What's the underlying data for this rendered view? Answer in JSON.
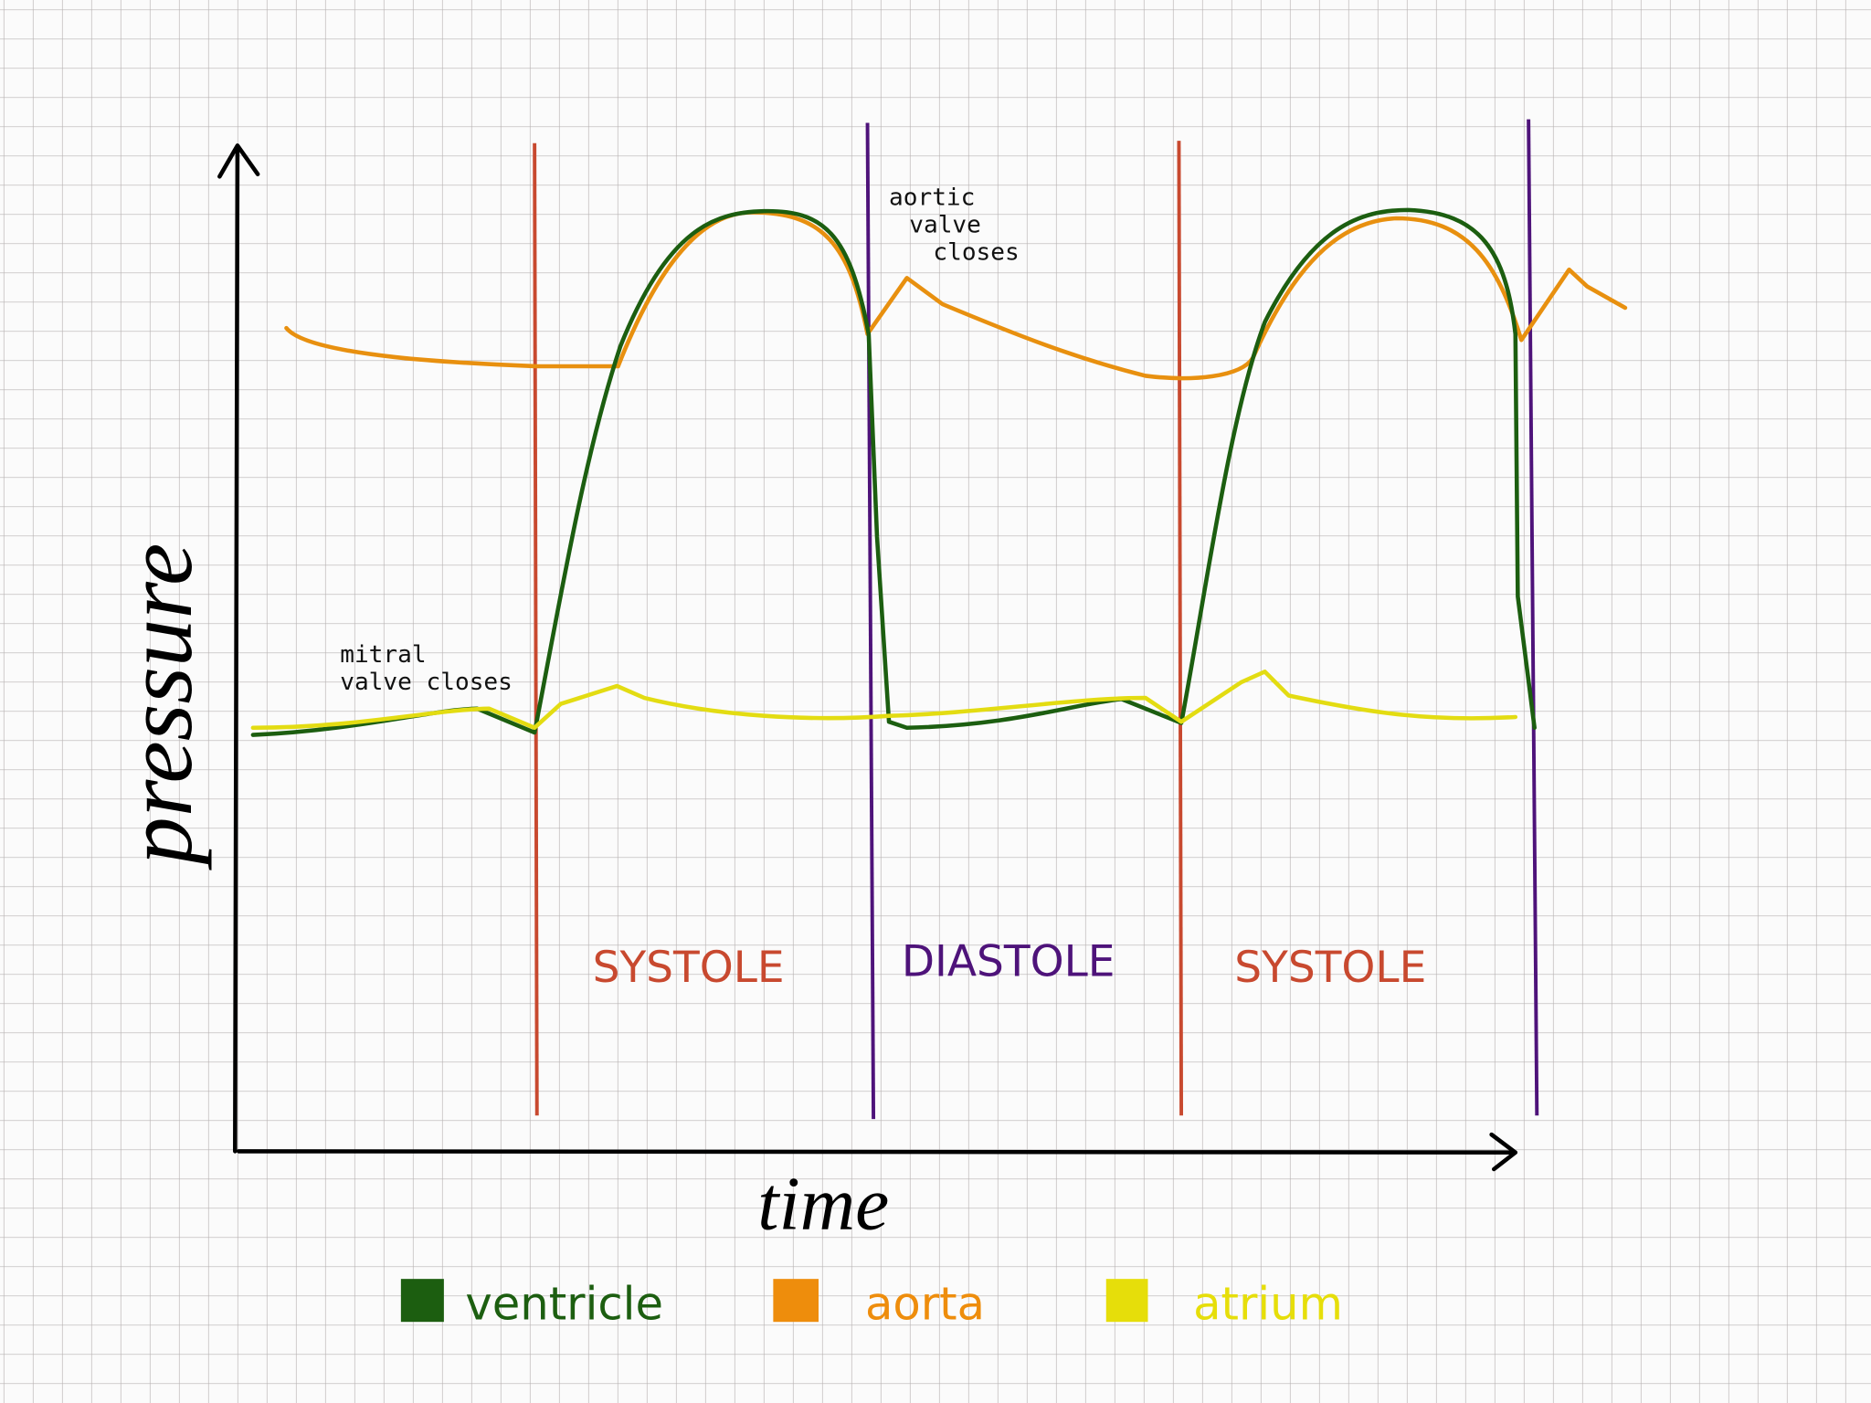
{
  "axes": {
    "y_label": "pressure",
    "x_label": "time"
  },
  "annotations": {
    "mitral": [
      "mitral",
      "valve closes"
    ],
    "aortic": [
      "aortic",
      "valve",
      "closes"
    ]
  },
  "phases": [
    "SYSTOLE",
    "DIASTOLE",
    "SYSTOLE"
  ],
  "legend": [
    "ventricle",
    "aorta",
    "atrium"
  ]
}
